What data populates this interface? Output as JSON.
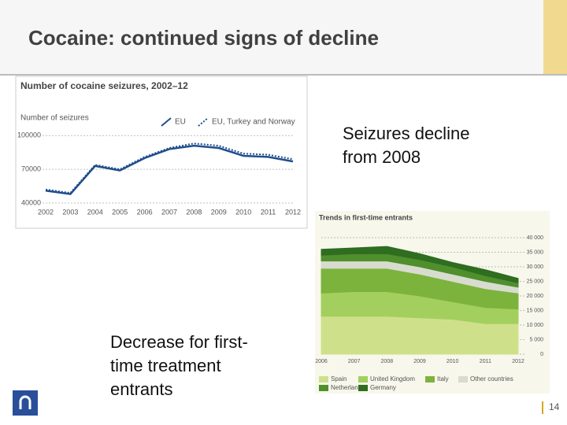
{
  "slide": {
    "title": "Cocaine: continued signs of decline",
    "note_seizures": "Seizures decline from 2008",
    "note_entrants": "Decrease for first-time treatment entrants",
    "page_number": "14"
  },
  "chart_data": [
    {
      "type": "line",
      "title": "Number of cocaine seizures, 2002–12",
      "y_label": "Number of seizures",
      "categories": [
        "2002",
        "2003",
        "2004",
        "2005",
        "2006",
        "2007",
        "2008",
        "2009",
        "2010",
        "2011",
        "2012"
      ],
      "series": [
        {
          "name": "EU",
          "color": "#1f4e8c",
          "line_style": "solid",
          "values": [
            51000,
            48000,
            73000,
            69000,
            80000,
            88000,
            91000,
            89000,
            82000,
            81000,
            77000
          ]
        },
        {
          "name": "EU, Turkey and Norway",
          "color": "#1f4e8c",
          "line_style": "dotted",
          "values": [
            52000,
            49000,
            74000,
            70000,
            81000,
            89000,
            93000,
            91000,
            84000,
            83000,
            79000
          ]
        }
      ],
      "ylim": [
        40000,
        110000
      ],
      "yticks": [
        40000,
        70000,
        100000
      ],
      "grid": true
    },
    {
      "type": "stacked_area",
      "title": "Trends in first-time entrants",
      "categories": [
        "2006",
        "2007",
        "2008",
        "2009",
        "2010",
        "2011",
        "2012"
      ],
      "series": [
        {
          "name": "Spain",
          "color": "#cfe08a",
          "values": [
            13000,
            13000,
            13000,
            12500,
            12000,
            10500,
            10500
          ]
        },
        {
          "name": "United Kingdom",
          "color": "#a3cf5e",
          "values": [
            8000,
            8500,
            8500,
            7500,
            6000,
            5500,
            5000
          ]
        },
        {
          "name": "Italy",
          "color": "#7cb33c",
          "values": [
            8500,
            8000,
            8000,
            7500,
            7000,
            6500,
            5500
          ]
        },
        {
          "name": "Other countries",
          "color": "#d8dccf",
          "values": [
            2500,
            2500,
            2500,
            2500,
            2500,
            2500,
            2000
          ]
        },
        {
          "name": "Netherlands",
          "color": "#4f8f2c",
          "values": [
            2000,
            2500,
            2500,
            2500,
            2500,
            2000,
            1500
          ]
        },
        {
          "name": "Germany",
          "color": "#2f6d20",
          "values": [
            2000,
            2000,
            2500,
            2000,
            1500,
            2000,
            1500
          ]
        }
      ],
      "ylim": [
        0,
        40000
      ],
      "yticks": [
        0,
        {
          "value": 5000,
          "label": "5 000"
        },
        {
          "value": 10000,
          "label": "10 000"
        },
        {
          "value": 15000,
          "label": "15 000"
        },
        {
          "value": 20000,
          "label": "20 000"
        },
        {
          "value": 25000,
          "label": "25 000"
        },
        {
          "value": 30000,
          "label": "30 000"
        },
        {
          "value": 35000,
          "label": "35 000"
        },
        {
          "value": 40000,
          "label": "40 000"
        }
      ],
      "grid": true
    }
  ]
}
